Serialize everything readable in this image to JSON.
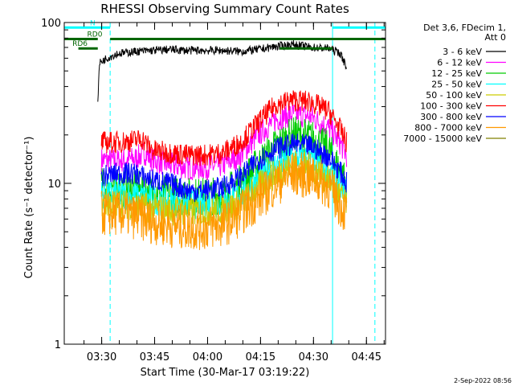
{
  "chart_data": {
    "type": "line",
    "title": "RHESSI Observing Summary Count Rates",
    "xlabel": "Start Time (30-Mar-17 03:19:22)",
    "ylabel": "Count Rate (s⁻¹ detector⁻¹)",
    "y_scale": "log",
    "ylim": [
      1,
      100
    ],
    "xlim_minutes_after_start": [
      0,
      91
    ],
    "x_tick_labels": [
      "03:30",
      "03:45",
      "04:00",
      "04:15",
      "04:30",
      "04:45"
    ],
    "x_tick_minutes_after_start": [
      10.6,
      25.6,
      40.6,
      55.6,
      70.6,
      85.6
    ],
    "y_tick_labels": [
      "1",
      "10",
      "100"
    ],
    "y_tick_values": [
      1,
      10,
      100
    ],
    "grid": false,
    "legend_position": "right",
    "legend_header": [
      "Det 3,6, FDecim 1,",
      "Att 0"
    ],
    "series": [
      {
        "name": "3 - 6 keV",
        "color": "#000000",
        "x": [
          9.5,
          10,
          12,
          15,
          20,
          25,
          30,
          35,
          40,
          45,
          50,
          55,
          60,
          65,
          70,
          75,
          78,
          80
        ],
        "y": [
          33,
          56,
          60,
          64,
          66,
          67,
          68,
          67,
          67,
          67,
          66,
          68,
          71,
          73,
          70,
          69,
          65,
          53
        ]
      },
      {
        "name": "6 - 12 keV",
        "color": "#ff00ff",
        "x": [
          10.5,
          15,
          20,
          23,
          25,
          30,
          35,
          40,
          45,
          50,
          55,
          60,
          65,
          70,
          75,
          78,
          80
        ],
        "y": [
          14,
          13.8,
          14.2,
          15.5,
          14,
          13,
          12.5,
          12.5,
          13,
          15,
          20,
          25,
          27,
          26,
          22,
          18,
          15
        ]
      },
      {
        "name": "12 - 25 keV",
        "color": "#00cc00",
        "x": [
          10.5,
          15,
          20,
          25,
          30,
          35,
          40,
          45,
          50,
          55,
          60,
          65,
          70,
          75,
          78,
          80
        ],
        "y": [
          9.5,
          9.5,
          9.2,
          8.8,
          8.5,
          8.3,
          8.3,
          8.5,
          10,
          13,
          17,
          20,
          19,
          16,
          12,
          10
        ]
      },
      {
        "name": "25 - 50 keV",
        "color": "#00ffff",
        "x": [
          10.5,
          15,
          20,
          25,
          30,
          35,
          40,
          45,
          50,
          55,
          60,
          65,
          70,
          75,
          78,
          80
        ],
        "y": [
          8.5,
          8.5,
          8.3,
          8.0,
          7.6,
          7.5,
          7.4,
          7.6,
          8.5,
          10.5,
          13,
          14.5,
          14,
          12,
          10,
          8.5
        ]
      },
      {
        "name": "50 - 100 keV",
        "color": "#cccc00",
        "x": [
          10.5,
          15,
          20,
          25,
          30,
          35,
          40,
          45,
          50,
          55,
          60,
          65,
          70,
          75,
          78,
          80
        ],
        "y": [
          7.5,
          7.5,
          7.3,
          7.0,
          6.8,
          6.7,
          6.7,
          6.9,
          7.5,
          9.5,
          11.5,
          13,
          12.5,
          10.5,
          8.5,
          7.5
        ]
      },
      {
        "name": "100 - 300 keV",
        "color": "#ff0000",
        "x": [
          10.5,
          15,
          20,
          22,
          25,
          30,
          35,
          40,
          45,
          50,
          55,
          60,
          65,
          70,
          75,
          78,
          80
        ],
        "y": [
          18,
          18,
          18.5,
          19,
          16,
          15.5,
          15,
          15,
          15.5,
          18,
          24,
          31,
          33,
          32,
          28,
          22,
          18
        ]
      },
      {
        "name": "300 - 800 keV",
        "color": "#0000ff",
        "x": [
          10.5,
          15,
          20,
          25,
          30,
          35,
          40,
          45,
          50,
          55,
          60,
          65,
          70,
          75,
          78,
          80
        ],
        "y": [
          11,
          11.5,
          11.5,
          10.5,
          10,
          9,
          9,
          9.5,
          11,
          14,
          16.5,
          17.5,
          17,
          14.5,
          12,
          10
        ]
      },
      {
        "name": "800 - 7000 keV",
        "color": "#ff9900",
        "x": [
          10.5,
          15,
          20,
          25,
          30,
          35,
          40,
          45,
          50,
          55,
          60,
          65,
          70,
          75,
          78,
          80
        ],
        "y": [
          6.5,
          6.5,
          6.2,
          5.8,
          5.5,
          5.3,
          5.3,
          5.5,
          6.5,
          8,
          10,
          11.5,
          11,
          9.5,
          7.5,
          6.5
        ]
      },
      {
        "name": "7000 - 15000 keV",
        "color": "#808000",
        "x": [],
        "y": []
      }
    ],
    "annotations": [
      {
        "text": "N",
        "x_start": 0,
        "x_end": 13,
        "level": 93,
        "color": "#00ffff"
      },
      {
        "text": "RD0",
        "x_start": 0,
        "x_end": 9.5,
        "level": 79,
        "color": "#006600"
      },
      {
        "text": "RD6",
        "x_start": 4,
        "x_end": 9.5,
        "level": 69,
        "color": "#006600"
      },
      {
        "text": "",
        "x_start": 13,
        "x_end": 76,
        "level": 79,
        "color": "#006600"
      },
      {
        "text": "",
        "x_start": 61,
        "x_end": 76,
        "level": 69,
        "color": "#006600"
      },
      {
        "text": "",
        "x_start": 76,
        "x_end": 91,
        "level": 79,
        "color": "#006600"
      },
      {
        "text": "",
        "x_start": 76,
        "x_end": 91,
        "level": 93,
        "color": "#00ffff"
      }
    ],
    "vertical_lines": [
      {
        "x": 13,
        "color": "#00ffff",
        "style": "dashed"
      },
      {
        "x": 76,
        "color": "#00ffff",
        "style": "solid"
      },
      {
        "x": 88,
        "color": "#00ffff",
        "style": "dashed"
      }
    ]
  },
  "footer": {
    "date_stamp": "2-Sep-2022 08:56"
  }
}
